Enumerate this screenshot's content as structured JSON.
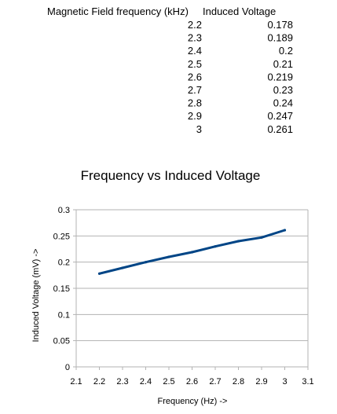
{
  "table": {
    "headers": [
      "Magnetic Field frequency (kHz)",
      "Induced Voltage"
    ],
    "rows": [
      [
        "2.2",
        "0.178"
      ],
      [
        "2.3",
        "0.189"
      ],
      [
        "2.4",
        "0.2"
      ],
      [
        "2.5",
        "0.21"
      ],
      [
        "2.6",
        "0.219"
      ],
      [
        "2.7",
        "0.23"
      ],
      [
        "2.8",
        "0.24"
      ],
      [
        "2.9",
        "0.247"
      ],
      [
        "3",
        "0.261"
      ]
    ]
  },
  "chart_data": {
    "type": "line",
    "title": "Frequency vs Induced Voltage",
    "xlabel": "Frequency (Hz) ->",
    "ylabel": "Induced Voltage (mV) ->",
    "xlim": [
      2.1,
      3.1
    ],
    "ylim": [
      0,
      0.3
    ],
    "xticks": [
      "2.1",
      "2.2",
      "2.3",
      "2.4",
      "2.5",
      "2.6",
      "2.7",
      "2.8",
      "2.9",
      "3",
      "3.1"
    ],
    "yticks": [
      "0",
      "0.05",
      "0.1",
      "0.15",
      "0.2",
      "0.25",
      "0.3"
    ],
    "grid": true,
    "legend": "none",
    "line_color": "#004586",
    "grid_color": "#b3b3b3",
    "series": [
      {
        "x": [
          2.2,
          2.3,
          2.4,
          2.5,
          2.6,
          2.7,
          2.8,
          2.9,
          3
        ],
        "values": [
          0.178,
          0.189,
          0.2,
          0.21,
          0.219,
          0.23,
          0.24,
          0.247,
          0.261
        ]
      }
    ]
  }
}
